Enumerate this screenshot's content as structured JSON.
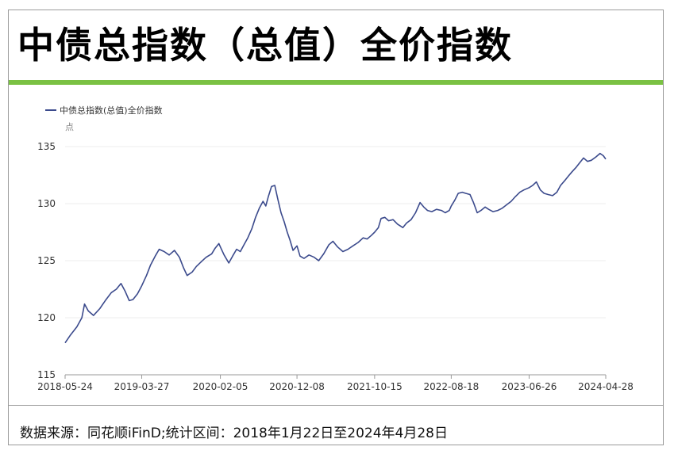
{
  "header": {
    "title": "中债总指数（总值）全价指数"
  },
  "footer": {
    "source": "数据来源：同花顺iFinD;统计区间：2018年1月22日至2024年4月28日"
  },
  "colors": {
    "accent_bar": "#7ac143",
    "series_line": "#3b4a8c"
  },
  "chart_data": {
    "type": "line",
    "title": "",
    "unit": "点",
    "legend_position": "top-left",
    "grid": true,
    "ylim": [
      115,
      135
    ],
    "yticks": [
      115,
      120,
      125,
      130,
      135
    ],
    "xticks": [
      "2018-05-24",
      "2019-03-27",
      "2020-02-05",
      "2020-12-08",
      "2021-10-15",
      "2022-08-18",
      "2023-06-26",
      "2024-04-28"
    ],
    "series": [
      {
        "name": "中债总指数(总值)全价指数",
        "points": [
          [
            "2018-05-24",
            117.8
          ],
          [
            "2018-06-15",
            118.5
          ],
          [
            "2018-07-10",
            119.2
          ],
          [
            "2018-07-30",
            120.0
          ],
          [
            "2018-08-10",
            121.2
          ],
          [
            "2018-08-25",
            120.6
          ],
          [
            "2018-09-15",
            120.2
          ],
          [
            "2018-10-10",
            120.8
          ],
          [
            "2018-11-01",
            121.5
          ],
          [
            "2018-11-25",
            122.2
          ],
          [
            "2018-12-15",
            122.5
          ],
          [
            "2019-01-03",
            123.0
          ],
          [
            "2019-01-20",
            122.3
          ],
          [
            "2019-02-05",
            121.5
          ],
          [
            "2019-02-20",
            121.6
          ],
          [
            "2019-03-10",
            122.1
          ],
          [
            "2019-03-27",
            122.8
          ],
          [
            "2019-04-15",
            123.7
          ],
          [
            "2019-05-01",
            124.6
          ],
          [
            "2019-05-20",
            125.4
          ],
          [
            "2019-06-05",
            126.0
          ],
          [
            "2019-06-25",
            125.8
          ],
          [
            "2019-07-15",
            125.5
          ],
          [
            "2019-08-05",
            125.9
          ],
          [
            "2019-08-25",
            125.3
          ],
          [
            "2019-09-10",
            124.4
          ],
          [
            "2019-09-25",
            123.7
          ],
          [
            "2019-10-15",
            124.0
          ],
          [
            "2019-11-01",
            124.5
          ],
          [
            "2019-11-20",
            124.9
          ],
          [
            "2019-12-10",
            125.3
          ],
          [
            "2020-01-01",
            125.6
          ],
          [
            "2020-01-15",
            126.1
          ],
          [
            "2020-01-30",
            126.5
          ],
          [
            "2020-02-05",
            126.2
          ],
          [
            "2020-02-20",
            125.5
          ],
          [
            "2020-03-10",
            124.8
          ],
          [
            "2020-03-25",
            125.4
          ],
          [
            "2020-04-10",
            126.0
          ],
          [
            "2020-04-25",
            125.8
          ],
          [
            "2020-05-10",
            126.4
          ],
          [
            "2020-05-25",
            127.0
          ],
          [
            "2020-06-10",
            127.8
          ],
          [
            "2020-06-25",
            128.8
          ],
          [
            "2020-07-10",
            129.6
          ],
          [
            "2020-07-25",
            130.2
          ],
          [
            "2020-08-05",
            129.8
          ],
          [
            "2020-08-15",
            130.6
          ],
          [
            "2020-08-28",
            131.5
          ],
          [
            "2020-09-10",
            131.6
          ],
          [
            "2020-09-22",
            130.4
          ],
          [
            "2020-10-05",
            129.2
          ],
          [
            "2020-10-18",
            128.4
          ],
          [
            "2020-10-30",
            127.5
          ],
          [
            "2020-11-10",
            126.8
          ],
          [
            "2020-11-22",
            125.9
          ],
          [
            "2020-12-08",
            126.3
          ],
          [
            "2020-12-20",
            125.4
          ],
          [
            "2021-01-05",
            125.2
          ],
          [
            "2021-01-25",
            125.5
          ],
          [
            "2021-02-15",
            125.3
          ],
          [
            "2021-03-05",
            125.0
          ],
          [
            "2021-03-25",
            125.6
          ],
          [
            "2021-04-15",
            126.4
          ],
          [
            "2021-05-01",
            126.7
          ],
          [
            "2021-05-20",
            126.2
          ],
          [
            "2021-06-10",
            125.8
          ],
          [
            "2021-06-30",
            126.0
          ],
          [
            "2021-07-20",
            126.3
          ],
          [
            "2021-08-10",
            126.6
          ],
          [
            "2021-08-30",
            127.0
          ],
          [
            "2021-09-15",
            126.9
          ],
          [
            "2021-10-01",
            127.2
          ],
          [
            "2021-10-15",
            127.5
          ],
          [
            "2021-10-30",
            127.9
          ],
          [
            "2021-11-10",
            128.7
          ],
          [
            "2021-11-25",
            128.8
          ],
          [
            "2021-12-10",
            128.5
          ],
          [
            "2021-12-28",
            128.6
          ],
          [
            "2022-01-15",
            128.2
          ],
          [
            "2022-02-05",
            127.9
          ],
          [
            "2022-02-20",
            128.3
          ],
          [
            "2022-03-10",
            128.6
          ],
          [
            "2022-03-28",
            129.2
          ],
          [
            "2022-04-15",
            130.1
          ],
          [
            "2022-04-30",
            129.7
          ],
          [
            "2022-05-15",
            129.4
          ],
          [
            "2022-06-01",
            129.3
          ],
          [
            "2022-06-20",
            129.5
          ],
          [
            "2022-07-10",
            129.4
          ],
          [
            "2022-07-25",
            129.2
          ],
          [
            "2022-08-10",
            129.4
          ],
          [
            "2022-08-18",
            129.8
          ],
          [
            "2022-09-01",
            130.3
          ],
          [
            "2022-09-15",
            130.9
          ],
          [
            "2022-10-01",
            131.0
          ],
          [
            "2022-10-15",
            130.9
          ],
          [
            "2022-11-01",
            130.8
          ],
          [
            "2022-11-15",
            130.1
          ],
          [
            "2022-11-30",
            129.2
          ],
          [
            "2022-12-15",
            129.4
          ],
          [
            "2023-01-01",
            129.7
          ],
          [
            "2023-01-15",
            129.5
          ],
          [
            "2023-02-01",
            129.3
          ],
          [
            "2023-02-20",
            129.4
          ],
          [
            "2023-03-10",
            129.6
          ],
          [
            "2023-03-28",
            129.9
          ],
          [
            "2023-04-15",
            130.2
          ],
          [
            "2023-05-01",
            130.6
          ],
          [
            "2023-05-20",
            131.0
          ],
          [
            "2023-06-05",
            131.2
          ],
          [
            "2023-06-26",
            131.4
          ],
          [
            "2023-07-10",
            131.6
          ],
          [
            "2023-07-25",
            131.9
          ],
          [
            "2023-08-10",
            131.2
          ],
          [
            "2023-08-25",
            130.9
          ],
          [
            "2023-09-10",
            130.8
          ],
          [
            "2023-09-28",
            130.7
          ],
          [
            "2023-10-15",
            131.0
          ],
          [
            "2023-10-30",
            131.6
          ],
          [
            "2023-11-15",
            132.0
          ],
          [
            "2023-11-30",
            132.4
          ],
          [
            "2023-12-15",
            132.8
          ],
          [
            "2024-01-01",
            133.2
          ],
          [
            "2024-01-15",
            133.6
          ],
          [
            "2024-01-30",
            134.0
          ],
          [
            "2024-02-15",
            133.7
          ],
          [
            "2024-03-01",
            133.8
          ],
          [
            "2024-03-20",
            134.1
          ],
          [
            "2024-04-05",
            134.4
          ],
          [
            "2024-04-18",
            134.2
          ],
          [
            "2024-04-28",
            133.9
          ]
        ]
      }
    ]
  }
}
